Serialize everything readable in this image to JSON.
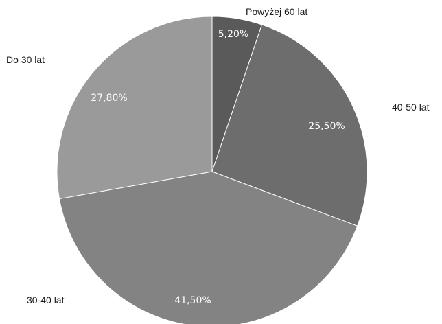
{
  "chart_data": {
    "type": "pie",
    "start_angle_deg": 0,
    "direction": "clockwise",
    "legend": "none",
    "slices": [
      {
        "label": "Powyżej 60 lat",
        "value": 5.2,
        "value_label": "5,20%",
        "color": "#5a5a5a"
      },
      {
        "label": "40-50 lat",
        "value": 25.5,
        "value_label": "25,50%",
        "color": "#6d6d6d"
      },
      {
        "label": "30-40 lat",
        "value": 41.5,
        "value_label": "41,50%",
        "color": "#838383"
      },
      {
        "label": "Do 30 lat",
        "value": 27.8,
        "value_label": "27,80%",
        "color": "#9a9a9a"
      }
    ]
  }
}
